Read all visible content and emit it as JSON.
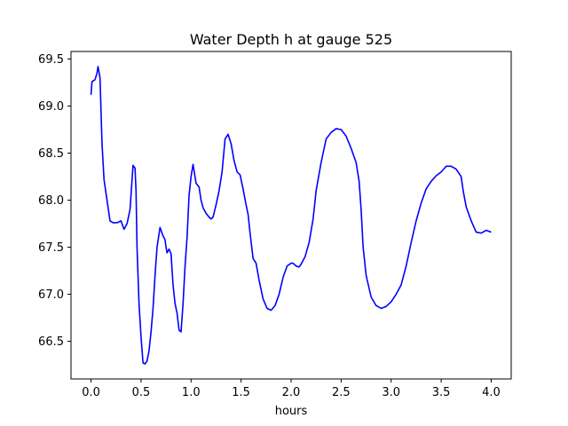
{
  "chart_data": {
    "type": "line",
    "title": "Water Depth h at gauge 525",
    "xlabel": "hours",
    "ylabel": "",
    "xlim": [
      -0.2,
      4.2
    ],
    "ylim": [
      66.1,
      69.58
    ],
    "xticks": [
      "0.0",
      "0.5",
      "1.0",
      "1.5",
      "2.0",
      "2.5",
      "3.0",
      "3.5",
      "4.0"
    ],
    "yticks": [
      "66.5",
      "67.0",
      "67.5",
      "68.0",
      "68.5",
      "69.0",
      "69.5"
    ],
    "grid": false,
    "series": [
      {
        "color": "#0000ff",
        "x": [
          0.0,
          0.01,
          0.04,
          0.06,
          0.07,
          0.09,
          0.11,
          0.13,
          0.16,
          0.19,
          0.22,
          0.26,
          0.3,
          0.33,
          0.36,
          0.39,
          0.42,
          0.44,
          0.45,
          0.46,
          0.48,
          0.5,
          0.52,
          0.54,
          0.56,
          0.58,
          0.6,
          0.62,
          0.64,
          0.66,
          0.69,
          0.72,
          0.74,
          0.75,
          0.76,
          0.78,
          0.8,
          0.82,
          0.84,
          0.86,
          0.88,
          0.9,
          0.92,
          0.94,
          0.96,
          0.98,
          1.0,
          1.02,
          1.05,
          1.08,
          1.1,
          1.12,
          1.15,
          1.18,
          1.2,
          1.22,
          1.25,
          1.28,
          1.31,
          1.34,
          1.37,
          1.4,
          1.43,
          1.46,
          1.49,
          1.52,
          1.55,
          1.57,
          1.59,
          1.62,
          1.65,
          1.68,
          1.72,
          1.76,
          1.8,
          1.84,
          1.88,
          1.92,
          1.96,
          2.0,
          2.02,
          2.05,
          2.08,
          2.1,
          2.14,
          2.18,
          2.22,
          2.25,
          2.3,
          2.35,
          2.4,
          2.45,
          2.5,
          2.55,
          2.6,
          2.65,
          2.68,
          2.7,
          2.72,
          2.75,
          2.8,
          2.85,
          2.9,
          2.95,
          3.0,
          3.05,
          3.1,
          3.15,
          3.2,
          3.25,
          3.3,
          3.35,
          3.4,
          3.45,
          3.5,
          3.55,
          3.6,
          3.65,
          3.7,
          3.72,
          3.75,
          3.8,
          3.85,
          3.9,
          3.95,
          4.0
        ],
        "y": [
          69.12,
          69.26,
          69.28,
          69.35,
          69.42,
          69.3,
          68.6,
          68.22,
          68.0,
          67.78,
          67.76,
          67.76,
          67.78,
          67.69,
          67.75,
          67.9,
          68.37,
          68.34,
          68.1,
          67.5,
          66.9,
          66.55,
          66.27,
          66.26,
          66.29,
          66.4,
          66.6,
          66.85,
          67.2,
          67.5,
          67.71,
          67.62,
          67.58,
          67.5,
          67.44,
          67.48,
          67.43,
          67.1,
          66.9,
          66.8,
          66.62,
          66.6,
          66.9,
          67.3,
          67.6,
          68.05,
          68.25,
          68.38,
          68.18,
          68.14,
          68.0,
          67.92,
          67.86,
          67.82,
          67.8,
          67.82,
          67.95,
          68.1,
          68.3,
          68.65,
          68.7,
          68.6,
          68.42,
          68.3,
          68.27,
          68.12,
          67.95,
          67.85,
          67.65,
          67.38,
          67.33,
          67.15,
          66.95,
          66.85,
          66.83,
          66.88,
          67.0,
          67.18,
          67.3,
          67.33,
          67.33,
          67.3,
          67.29,
          67.32,
          67.4,
          67.55,
          67.8,
          68.1,
          68.4,
          68.65,
          68.72,
          68.76,
          68.75,
          68.68,
          68.55,
          68.4,
          68.2,
          67.9,
          67.5,
          67.2,
          66.97,
          66.88,
          66.85,
          66.87,
          66.92,
          67.0,
          67.1,
          67.3,
          67.55,
          67.78,
          67.97,
          68.12,
          68.2,
          68.26,
          68.3,
          68.36,
          68.36,
          68.33,
          68.25,
          68.1,
          67.93,
          67.78,
          67.66,
          67.65,
          67.68,
          67.66
        ]
      }
    ]
  }
}
